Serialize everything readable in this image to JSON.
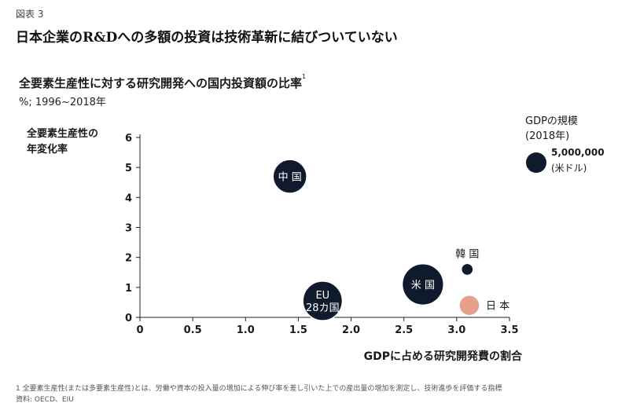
{
  "figure_label": "図表 3",
  "main_title": "日本企業のR&Dへの多額の投資は技術革新に結びついていない",
  "chart_data": {
    "type": "scatter",
    "title": "全要素生産性に対する研究開発への国内投資額の比率",
    "title_sup": "1",
    "subtitle": "%; 1996~2018年",
    "xlabel": "GDPに占める研究開発費の割合",
    "ylabel": "全要素生産性の\n年変化率",
    "xlim": [
      0,
      3.5
    ],
    "ylim": [
      0,
      6
    ],
    "x_ticks": [
      "0",
      "0.5",
      "1.0",
      "1.5",
      "2.0",
      "2.5",
      "3.0",
      "3.5"
    ],
    "y_ticks": [
      "0",
      "1",
      "2",
      "3",
      "4",
      "5",
      "6"
    ],
    "legend": {
      "title": "GDPの規模\n(2018年)",
      "reference_gdp": 5000000,
      "value_label": "5,000,000",
      "unit_label": "(米ドル)"
    },
    "points": [
      {
        "label": "中 国",
        "x": 1.42,
        "y": 4.7,
        "gdp": 13600000,
        "color": "#0f1b2d",
        "label_pos": "inside"
      },
      {
        "label": "EU\n28カ国",
        "x": 1.73,
        "y": 0.55,
        "gdp": 18700000,
        "color": "#0f1b2d",
        "label_pos": "inside"
      },
      {
        "label": "米 国",
        "x": 2.68,
        "y": 1.1,
        "gdp": 20500000,
        "color": "#0f1b2d",
        "label_pos": "inside"
      },
      {
        "label": "韓 国",
        "x": 3.1,
        "y": 1.6,
        "gdp": 1700000,
        "color": "#0f1b2d",
        "label_pos": "above"
      },
      {
        "label": "日 本",
        "x": 3.12,
        "y": 0.4,
        "gdp": 5000000,
        "color": "#e8a08e",
        "label_pos": "right"
      }
    ],
    "grid": false
  },
  "footnote": {
    "line1": "1 全要素生産性(または多要素生産性)とは、労働や資本の投入量の増加による伸び率を差し引いた上での産出量の増加を測定し、技術進歩を評価する指標",
    "line2": "資料: OECD、EIU"
  }
}
